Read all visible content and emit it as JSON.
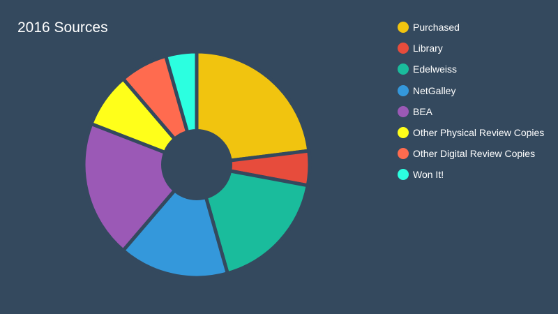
{
  "chart_data": {
    "type": "pie",
    "title": "2016 Sources",
    "donut": true,
    "legend_position": "right",
    "categories": [
      "Purchased",
      "Library",
      "Edelweiss",
      "NetGalley",
      "BEA",
      "Other Physical Review Copies",
      "Other Digital Review Copies",
      "Won It!"
    ],
    "values": [
      23.5,
      5,
      18,
      16,
      20,
      8,
      7,
      4.5
    ],
    "colors": [
      "#f1c40f",
      "#e74c3c",
      "#1abc9c",
      "#3498db",
      "#9b59b6",
      "#ffff1a",
      "#ff6b4f",
      "#2cffe0"
    ]
  },
  "page": {
    "background": "#34495e"
  }
}
